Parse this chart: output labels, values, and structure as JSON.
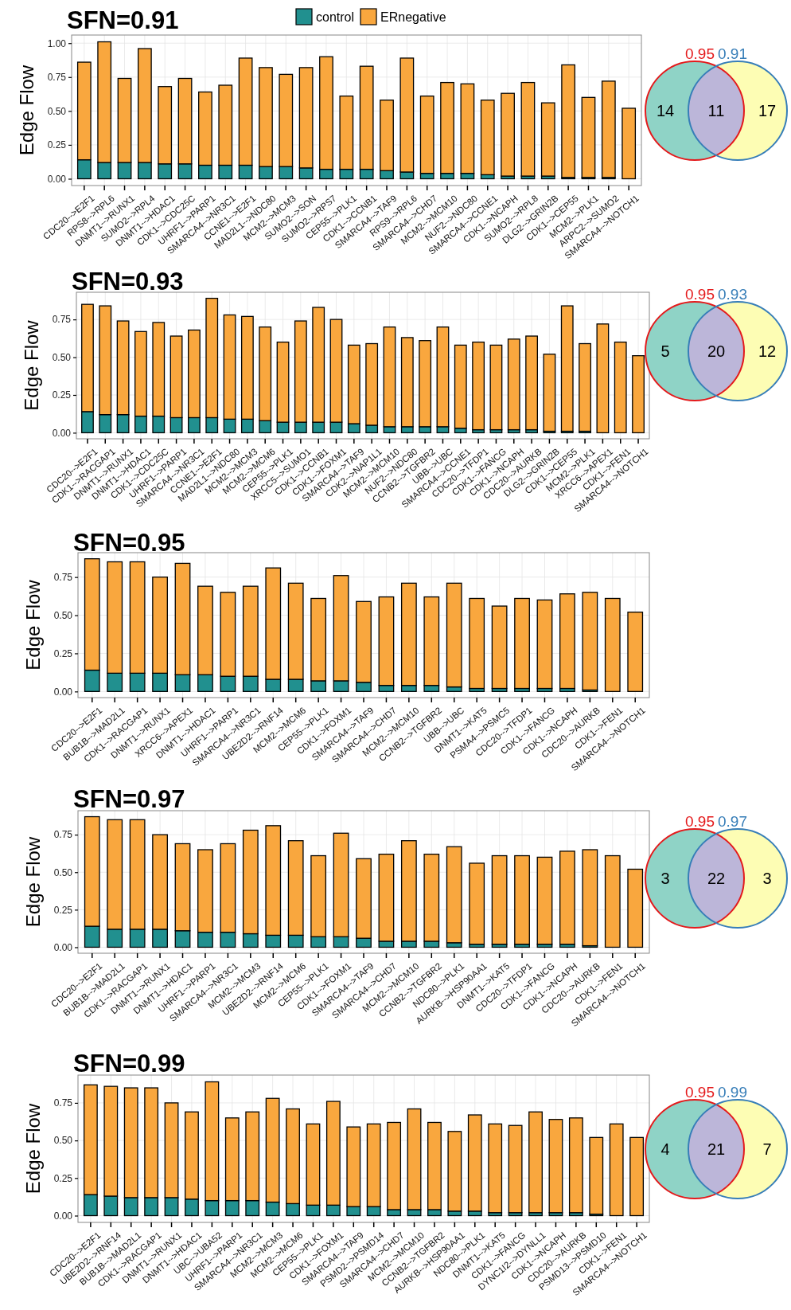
{
  "chart_data": [
    {
      "type": "bar",
      "title": "SFN=0.91",
      "ylabel": "Edge Flow",
      "stacked": true,
      "grid": true,
      "legend": "top",
      "ylim": [
        -0.05,
        1.06
      ],
      "yticks": [
        {
          "value": 0,
          "label": "0.00"
        },
        {
          "value": 0.25,
          "label": "0.25"
        },
        {
          "value": 0.5,
          "label": "0.50"
        },
        {
          "value": 0.75,
          "label": "0.75"
        },
        {
          "value": 1,
          "label": "1.00"
        }
      ],
      "categories": [
        "CDC20-->E2F1",
        "RPS8-->RPL6",
        "DNMT1-->RUNX1",
        "SUMO2-->RPL4",
        "DNMT1-->HDAC1",
        "CDK1-->CDC25C",
        "UHRF1-->PARP1",
        "SMARCA4-->NR3C1",
        "CCNE1-->E2F1",
        "MAD2L1-->NDC80",
        "MCM2-->MCM3",
        "SUMO2-->SON",
        "SUMO2-->RPS7",
        "CEP55-->PLK1",
        "CDK1-->CCNB1",
        "SMARCA4-->TAF9",
        "RPS9-->RPL6",
        "SMARCA4-->CHD7",
        "MCM2-->MCM10",
        "NUF2-->NDC80",
        "SMARCA4-->CCNE1",
        "CDK1-->NCAPH",
        "SUMO2-->RPL8",
        "DLG2-->GRIN2B",
        "CDK1-->CEP55",
        "MCM2-->PLK1",
        "ARPC2-->SUMO2",
        "SMARCA4-->NOTCH1"
      ],
      "series": [
        {
          "name": "control",
          "color": "#21908f",
          "values": [
            0.14,
            0.12,
            0.12,
            0.12,
            0.11,
            0.11,
            0.1,
            0.1,
            0.1,
            0.09,
            0.09,
            0.08,
            0.07,
            0.07,
            0.07,
            0.06,
            0.05,
            0.04,
            0.04,
            0.04,
            0.03,
            0.02,
            0.02,
            0.02,
            0.01,
            0.01,
            0.01,
            0.0
          ]
        },
        {
          "name": "ERnegative",
          "color": "#f9a73e",
          "values": [
            0.72,
            0.89,
            0.62,
            0.84,
            0.57,
            0.63,
            0.54,
            0.59,
            0.79,
            0.73,
            0.68,
            0.74,
            0.83,
            0.54,
            0.76,
            0.52,
            0.84,
            0.57,
            0.67,
            0.66,
            0.55,
            0.61,
            0.69,
            0.54,
            0.83,
            0.59,
            0.71,
            0.52
          ]
        }
      ]
    },
    {
      "type": "other",
      "annotations": [
        "14",
        "11",
        "17"
      ],
      "colors": [
        "#8fd3c6",
        "#bcb6d9",
        "#fdfdb4"
      ],
      "series": [
        {
          "name": "0.95",
          "color": "#e41a1c"
        },
        {
          "name": "0.91",
          "color": "#377eb8"
        }
      ]
    },
    {
      "type": "bar",
      "title": "SFN=0.93",
      "ylabel": "Edge Flow",
      "stacked": true,
      "grid": true,
      "ylim": [
        -0.04,
        0.93
      ],
      "yticks": [
        {
          "value": 0,
          "label": "0.00"
        },
        {
          "value": 0.25,
          "label": "0.25"
        },
        {
          "value": 0.5,
          "label": "0.50"
        },
        {
          "value": 0.75,
          "label": "0.75"
        }
      ],
      "categories": [
        "CDC20-->E2F1",
        "CDK1-->RACGAP1",
        "DNMT1-->RUNX1",
        "DNMT1-->HDAC1",
        "CDK1-->CDC25C",
        "UHRF1-->PARP1",
        "SMARCA4-->NR3C1",
        "CCNE1-->E2F1",
        "MAD2L1-->NDC80",
        "MCM2-->MCM3",
        "MCM2-->MCM6",
        "CEP55-->PLK1",
        "XRCC5-->SUMO1",
        "CDK1-->CCNB1",
        "CDK1-->FOXM1",
        "SMARCA4-->TAF9",
        "CDK2-->NAP1L1",
        "MCM2-->MCM10",
        "NUF2-->NDC80",
        "CCNB2-->TGFBR2",
        "UBB-->UBC",
        "SMARCA4-->CCNE1",
        "CDC20-->TFDP1",
        "CDK1-->FANCG",
        "CDK1-->NCAPH",
        "CDC20-->AURKB",
        "DLG2-->GRIN2B",
        "CDK1-->CEP55",
        "MCM2-->PLK1",
        "XRCC6-->APEX1",
        "CDK1-->FEN1",
        "SMARCA4-->NOTCH1"
      ],
      "series": [
        {
          "color": "#21908f",
          "values": [
            0.14,
            0.12,
            0.12,
            0.11,
            0.11,
            0.1,
            0.1,
            0.1,
            0.09,
            0.09,
            0.08,
            0.07,
            0.07,
            0.07,
            0.07,
            0.06,
            0.05,
            0.04,
            0.04,
            0.04,
            0.04,
            0.03,
            0.02,
            0.02,
            0.02,
            0.02,
            0.01,
            0.01,
            0.01,
            0.0,
            0.0,
            0.0
          ]
        },
        {
          "color": "#f9a73e",
          "values": [
            0.71,
            0.72,
            0.62,
            0.56,
            0.62,
            0.54,
            0.58,
            0.79,
            0.69,
            0.68,
            0.62,
            0.53,
            0.67,
            0.76,
            0.68,
            0.52,
            0.54,
            0.66,
            0.59,
            0.57,
            0.66,
            0.55,
            0.58,
            0.56,
            0.6,
            0.62,
            0.51,
            0.83,
            0.58,
            0.72,
            0.6,
            0.51
          ]
        }
      ]
    },
    {
      "type": "other",
      "annotations": [
        "5",
        "20",
        "12"
      ],
      "colors": [
        "#8fd3c6",
        "#bcb6d9",
        "#fdfdb4"
      ],
      "series": [
        {
          "name": "0.95",
          "color": "#e41a1c"
        },
        {
          "name": "0.93",
          "color": "#377eb8"
        }
      ]
    },
    {
      "type": "bar",
      "title": "SFN=0.95",
      "ylabel": "Edge Flow",
      "stacked": true,
      "grid": true,
      "ylim": [
        -0.04,
        0.91
      ],
      "yticks": [
        {
          "value": 0,
          "label": "0.00"
        },
        {
          "value": 0.25,
          "label": "0.25"
        },
        {
          "value": 0.5,
          "label": "0.50"
        },
        {
          "value": 0.75,
          "label": "0.75"
        }
      ],
      "categories": [
        "CDC20-->E2F1",
        "BUB1B-->MAD2L1",
        "CDK1-->RACGAP1",
        "DNMT1-->RUNX1",
        "XRCC6-->APEX1",
        "DNMT1-->HDAC1",
        "UHRF1-->PARP1",
        "SMARCA4-->NR3C1",
        "UBE2D2-->RNF14",
        "MCM2-->MCM6",
        "CEP55-->PLK1",
        "CDK1-->FOXM1",
        "SMARCA4-->TAF9",
        "SMARCA4-->CHD7",
        "MCM2-->MCM10",
        "CCNB2-->TGFBR2",
        "UBB-->UBC",
        "DNMT1-->KAT5",
        "PSMA4-->PSMC5",
        "CDC20-->TFDP1",
        "CDK1-->FANCG",
        "CDK1-->NCAPH",
        "CDC20-->AURKB",
        "CDK1-->FEN1",
        "SMARCA4-->NOTCH1"
      ],
      "series": [
        {
          "color": "#21908f",
          "values": [
            0.14,
            0.12,
            0.12,
            0.12,
            0.11,
            0.11,
            0.1,
            0.1,
            0.08,
            0.08,
            0.07,
            0.07,
            0.06,
            0.04,
            0.04,
            0.04,
            0.03,
            0.02,
            0.02,
            0.02,
            0.02,
            0.02,
            0.01,
            0.0,
            0.0
          ]
        },
        {
          "color": "#f9a73e",
          "values": [
            0.73,
            0.73,
            0.73,
            0.63,
            0.73,
            0.58,
            0.55,
            0.59,
            0.73,
            0.63,
            0.54,
            0.69,
            0.53,
            0.58,
            0.67,
            0.58,
            0.68,
            0.59,
            0.54,
            0.59,
            0.58,
            0.62,
            0.64,
            0.61,
            0.52
          ]
        }
      ]
    },
    {
      "type": "bar",
      "title": "SFN=0.97",
      "ylabel": "Edge Flow",
      "stacked": true,
      "grid": true,
      "ylim": [
        -0.04,
        0.91
      ],
      "yticks": [
        {
          "value": 0,
          "label": "0.00"
        },
        {
          "value": 0.25,
          "label": "0.25"
        },
        {
          "value": 0.5,
          "label": "0.50"
        },
        {
          "value": 0.75,
          "label": "0.75"
        }
      ],
      "categories": [
        "CDC20-->E2F1",
        "BUB1B-->MAD2L1",
        "CDK1-->RACGAP1",
        "DNMT1-->RUNX1",
        "DNMT1-->HDAC1",
        "UHRF1-->PARP1",
        "SMARCA4-->NR3C1",
        "MCM2-->MCM3",
        "UBE2D2-->RNF14",
        "MCM2-->MCM6",
        "CEP55-->PLK1",
        "CDK1-->FOXM1",
        "SMARCA4-->TAF9",
        "SMARCA4-->CHD7",
        "MCM2-->MCM10",
        "CCNB2-->TGFBR2",
        "NDC80-->PLK1",
        "AURKB-->HSP90AA1",
        "DNMT1-->KAT5",
        "CDC20-->TFDP1",
        "CDK1-->FANCG",
        "CDK1-->NCAPH",
        "CDC20-->AURKB",
        "CDK1-->FEN1",
        "SMARCA4-->NOTCH1"
      ],
      "series": [
        {
          "color": "#21908f",
          "values": [
            0.14,
            0.12,
            0.12,
            0.12,
            0.11,
            0.1,
            0.1,
            0.09,
            0.08,
            0.08,
            0.07,
            0.07,
            0.06,
            0.04,
            0.04,
            0.04,
            0.03,
            0.02,
            0.02,
            0.02,
            0.02,
            0.02,
            0.01,
            0.0,
            0.0
          ]
        },
        {
          "color": "#f9a73e",
          "values": [
            0.73,
            0.73,
            0.73,
            0.63,
            0.58,
            0.55,
            0.59,
            0.69,
            0.73,
            0.63,
            0.54,
            0.69,
            0.53,
            0.58,
            0.67,
            0.58,
            0.64,
            0.54,
            0.59,
            0.59,
            0.58,
            0.62,
            0.64,
            0.61,
            0.52
          ]
        }
      ]
    },
    {
      "type": "other",
      "annotations": [
        "3",
        "22",
        "3"
      ],
      "colors": [
        "#8fd3c6",
        "#bcb6d9",
        "#fdfdb4"
      ],
      "series": [
        {
          "name": "0.95",
          "color": "#e41a1c"
        },
        {
          "name": "0.97",
          "color": "#377eb8"
        }
      ]
    },
    {
      "type": "bar",
      "title": "SFN=0.99",
      "ylabel": "Edge Flow",
      "stacked": true,
      "grid": true,
      "ylim": [
        -0.045,
        0.935
      ],
      "yticks": [
        {
          "value": 0,
          "label": "0.00"
        },
        {
          "value": 0.25,
          "label": "0.25"
        },
        {
          "value": 0.5,
          "label": "0.50"
        },
        {
          "value": 0.75,
          "label": "0.75"
        }
      ],
      "categories": [
        "CDC20-->E2F1",
        "UBE2D2-->RNF14",
        "BUB1B-->MAD2L1",
        "CDK1-->RACGAP1",
        "DNMT1-->RUNX1",
        "DNMT1-->HDAC1",
        "UBC-->UBA52",
        "UHRF1-->PARP1",
        "SMARCA4-->NR3C1",
        "MCM2-->MCM3",
        "MCM2-->MCM6",
        "CEP55-->PLK1",
        "CDK1-->FOXM1",
        "SMARCA4-->TAF9",
        "PSMD2-->PSMD14",
        "SMARCA4-->CHD7",
        "MCM2-->MCM10",
        "CCNB2-->TGFBR2",
        "AURKB-->HSP90AA1",
        "NDC80-->PLK1",
        "DNMT1-->KAT5",
        "CDK1-->FANCG",
        "DYNC1I2-->DYNLL1",
        "CDK1-->NCAPH",
        "CDC20-->AURKB",
        "PSMD13-->PSMD10",
        "CDK1-->FEN1",
        "SMARCA4-->NOTCH1"
      ],
      "series": [
        {
          "color": "#21908f",
          "values": [
            0.14,
            0.13,
            0.12,
            0.12,
            0.12,
            0.11,
            0.1,
            0.1,
            0.1,
            0.09,
            0.08,
            0.07,
            0.07,
            0.06,
            0.06,
            0.04,
            0.04,
            0.04,
            0.03,
            0.03,
            0.02,
            0.02,
            0.02,
            0.02,
            0.02,
            0.01,
            0.0,
            0.0
          ]
        },
        {
          "color": "#f9a73e",
          "values": [
            0.73,
            0.73,
            0.73,
            0.73,
            0.63,
            0.58,
            0.79,
            0.55,
            0.59,
            0.69,
            0.63,
            0.54,
            0.69,
            0.53,
            0.55,
            0.58,
            0.67,
            0.58,
            0.53,
            0.64,
            0.59,
            0.58,
            0.67,
            0.62,
            0.63,
            0.51,
            0.61,
            0.52
          ]
        }
      ]
    },
    {
      "type": "other",
      "annotations": [
        "4",
        "21",
        "7"
      ],
      "colors": [
        "#8fd3c6",
        "#bcb6d9",
        "#fdfdb4"
      ],
      "series": [
        {
          "name": "0.95",
          "color": "#e41a1c"
        },
        {
          "name": "0.99",
          "color": "#377eb8"
        }
      ]
    }
  ]
}
